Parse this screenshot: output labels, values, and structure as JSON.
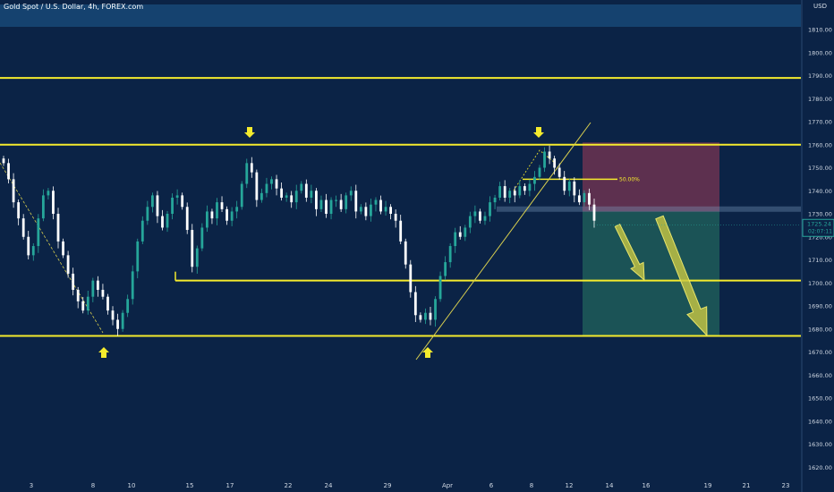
{
  "header": {
    "title": "Gold Spot / U.S. Dollar, 4h, FOREX.com",
    "currency_label": "USD"
  },
  "price_tag": {
    "value": "1725.24",
    "countdown": "02:07:11"
  },
  "fib_label": "50.00%",
  "colors": {
    "background": "#0b2346",
    "bull_candle": "#26a69a",
    "bear_candle": "#ffffff",
    "level_line": "#f5eb2d",
    "stop_zone": "#ef53504d",
    "target_zone": "#26a69a55",
    "top_band": "#1a4e7d",
    "arrow_fill": "#c9c842"
  },
  "icons": [
    "arrow-down-marker-icon",
    "arrow-up-marker-icon",
    "projection-arrow-icon"
  ],
  "chart_data": {
    "type": "candlestick",
    "title": "Gold Spot / U.S. Dollar, 4h, FOREX.com",
    "ylim": [
      1615,
      1820
    ],
    "y_ticks": [
      "1810.00",
      "1800.00",
      "1790.00",
      "1780.00",
      "1770.00",
      "1760.00",
      "1750.00",
      "1740.00",
      "1730.00",
      "1720.00",
      "1710.00",
      "1700.00",
      "1690.00",
      "1680.00",
      "1670.00",
      "1660.00",
      "1650.00",
      "1640.00",
      "1630.00",
      "1620.00"
    ],
    "x_ticks": [
      "3",
      "8",
      "10",
      "15",
      "17",
      "22",
      "24",
      "29",
      "Apr",
      "6",
      "8",
      "12",
      "14",
      "16",
      "19",
      "21",
      "23"
    ],
    "horizontal_levels": [
      1789,
      1760,
      1701,
      1677
    ],
    "series": [
      {
        "values": [
          1752,
          1745,
          1735,
          1728,
          1720,
          1712,
          1716,
          1728,
          1738,
          1740,
          1730,
          1718,
          1712,
          1704,
          1697,
          1692,
          1688,
          1694,
          1701,
          1697,
          1694,
          1688,
          1684,
          1680,
          1687,
          1693,
          1705,
          1718,
          1727,
          1733,
          1738,
          1729,
          1724,
          1730,
          1737,
          1738,
          1733,
          1723,
          1707,
          1715,
          1724,
          1731,
          1728,
          1735,
          1732,
          1727,
          1731,
          1733,
          1743,
          1752,
          1748,
          1736,
          1739,
          1743,
          1745,
          1741,
          1737,
          1738,
          1735,
          1740,
          1743,
          1737,
          1740,
          1732,
          1736,
          1730,
          1736,
          1736,
          1732,
          1738,
          1740,
          1731,
          1733,
          1729,
          1734,
          1736,
          1731,
          1733,
          1730,
          1727,
          1718,
          1708,
          1696,
          1686,
          1684,
          1687,
          1684,
          1693,
          1703,
          1709,
          1716,
          1722,
          1720,
          1724,
          1729,
          1731,
          1727,
          1729,
          1735,
          1737,
          1742,
          1737,
          1740,
          1738,
          1742,
          1740,
          1743,
          1746,
          1750,
          1757,
          1754,
          1750,
          1746,
          1740,
          1744,
          1738,
          1735,
          1739,
          1734,
          1727
        ]
      }
    ]
  }
}
